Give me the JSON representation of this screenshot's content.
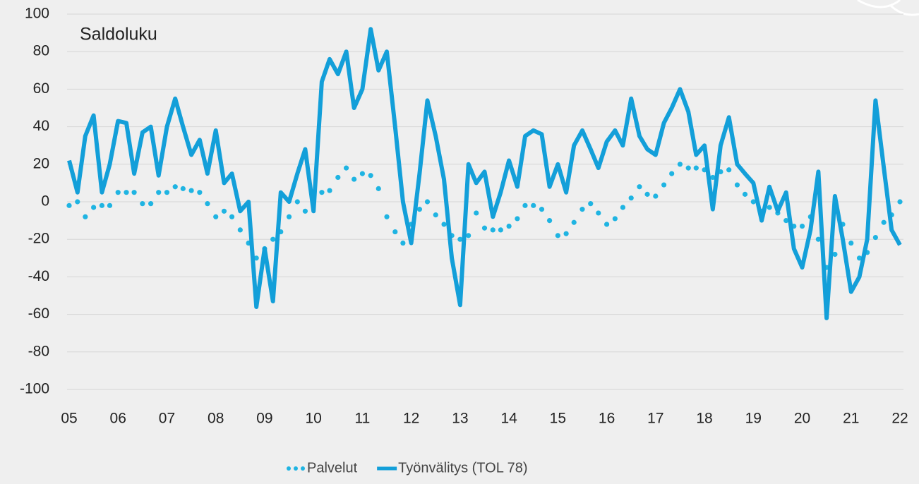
{
  "chart_data": {
    "type": "line",
    "title": "Saldoluku",
    "x": [
      5,
      5.17,
      5.33,
      5.5,
      5.67,
      5.83,
      6,
      6.17,
      6.33,
      6.5,
      6.67,
      6.83,
      7,
      7.17,
      7.33,
      7.5,
      7.67,
      7.83,
      8,
      8.17,
      8.33,
      8.5,
      8.67,
      8.83,
      9,
      9.17,
      9.33,
      9.5,
      9.67,
      9.83,
      10,
      10.17,
      10.33,
      10.5,
      10.67,
      10.83,
      11,
      11.17,
      11.33,
      11.5,
      11.67,
      11.83,
      12,
      12.17,
      12.33,
      12.5,
      12.67,
      12.83,
      13,
      13.17,
      13.33,
      13.5,
      13.67,
      13.83,
      14,
      14.17,
      14.33,
      14.5,
      14.67,
      14.83,
      15,
      15.17,
      15.33,
      15.5,
      15.67,
      15.83,
      16,
      16.17,
      16.33,
      16.5,
      16.67,
      16.83,
      17,
      17.17,
      17.33,
      17.5,
      17.67,
      17.83,
      18,
      18.17,
      18.33,
      18.5,
      18.67,
      18.83,
      19,
      19.17,
      19.33,
      19.5,
      19.67,
      19.83,
      20,
      20.17,
      20.33,
      20.5,
      20.67,
      20.83,
      21,
      21.17,
      21.33,
      21.5,
      21.67,
      21.83,
      22
    ],
    "series": [
      {
        "name": "Palvelut",
        "color": "#1fb4e2",
        "style": "dotted",
        "values": [
          -2,
          0,
          -8,
          -3,
          -2,
          -2,
          5,
          5,
          5,
          -1,
          -1,
          5,
          5,
          8,
          7,
          6,
          5,
          -1,
          -8,
          -5,
          -8,
          -15,
          -22,
          -30,
          -25,
          -20,
          -16,
          -8,
          0,
          -5,
          2,
          5,
          6,
          13,
          18,
          12,
          15,
          14,
          7,
          -8,
          -16,
          -22,
          -12,
          -4,
          0,
          -7,
          -12,
          -18,
          -20,
          -18,
          -6,
          -14,
          -15,
          -15,
          -13,
          -9,
          -2,
          -2,
          -4,
          -10,
          -18,
          -17,
          -11,
          -4,
          -1,
          -6,
          -12,
          -9,
          -3,
          2,
          8,
          4,
          3,
          9,
          15,
          20,
          18,
          18,
          17,
          13,
          16,
          17,
          9,
          4,
          0,
          -5,
          -3,
          -6,
          -10,
          -13,
          -13,
          -8,
          -20,
          -35,
          -28,
          -12,
          -22,
          -30,
          -27,
          -19,
          -11,
          -7,
          0
        ]
      },
      {
        "name": "Työnvälitys (TOL 78)",
        "color": "#139fd9",
        "style": "solid",
        "values": [
          22,
          5,
          35,
          46,
          5,
          20,
          43,
          42,
          15,
          37,
          40,
          14,
          40,
          55,
          40,
          25,
          33,
          15,
          38,
          10,
          15,
          -5,
          0,
          -56,
          -25,
          -53,
          5,
          0,
          15,
          28,
          -5,
          64,
          76,
          68,
          80,
          50,
          60,
          92,
          70,
          80,
          40,
          0,
          -22,
          15,
          54,
          35,
          12,
          -30,
          -55,
          20,
          10,
          16,
          -8,
          5,
          22,
          8,
          35,
          38,
          36,
          8,
          20,
          5,
          30,
          38,
          28,
          18,
          32,
          38,
          30,
          55,
          35,
          28,
          25,
          42,
          50,
          60,
          48,
          25,
          30,
          -4,
          30,
          45,
          20,
          15,
          10,
          -10,
          8,
          -5,
          5,
          -25,
          -35,
          -15,
          16,
          -62,
          3,
          -20,
          -48,
          -40,
          -20,
          54,
          18,
          -15,
          -23
        ]
      }
    ],
    "xlim": [
      5,
      22
    ],
    "xticks": [
      {
        "value": 5,
        "label": "05"
      },
      {
        "value": 6,
        "label": "06"
      },
      {
        "value": 7,
        "label": "07"
      },
      {
        "value": 8,
        "label": "08"
      },
      {
        "value": 9,
        "label": "09"
      },
      10,
      11,
      12,
      13,
      14,
      15,
      16,
      17,
      18,
      19,
      20,
      21,
      22
    ],
    "ylim": [
      -100,
      100
    ],
    "yticks": [
      -100,
      -80,
      -60,
      -40,
      -20,
      0,
      20,
      40,
      60,
      80,
      100
    ],
    "grid": true,
    "legend": "bottom"
  }
}
